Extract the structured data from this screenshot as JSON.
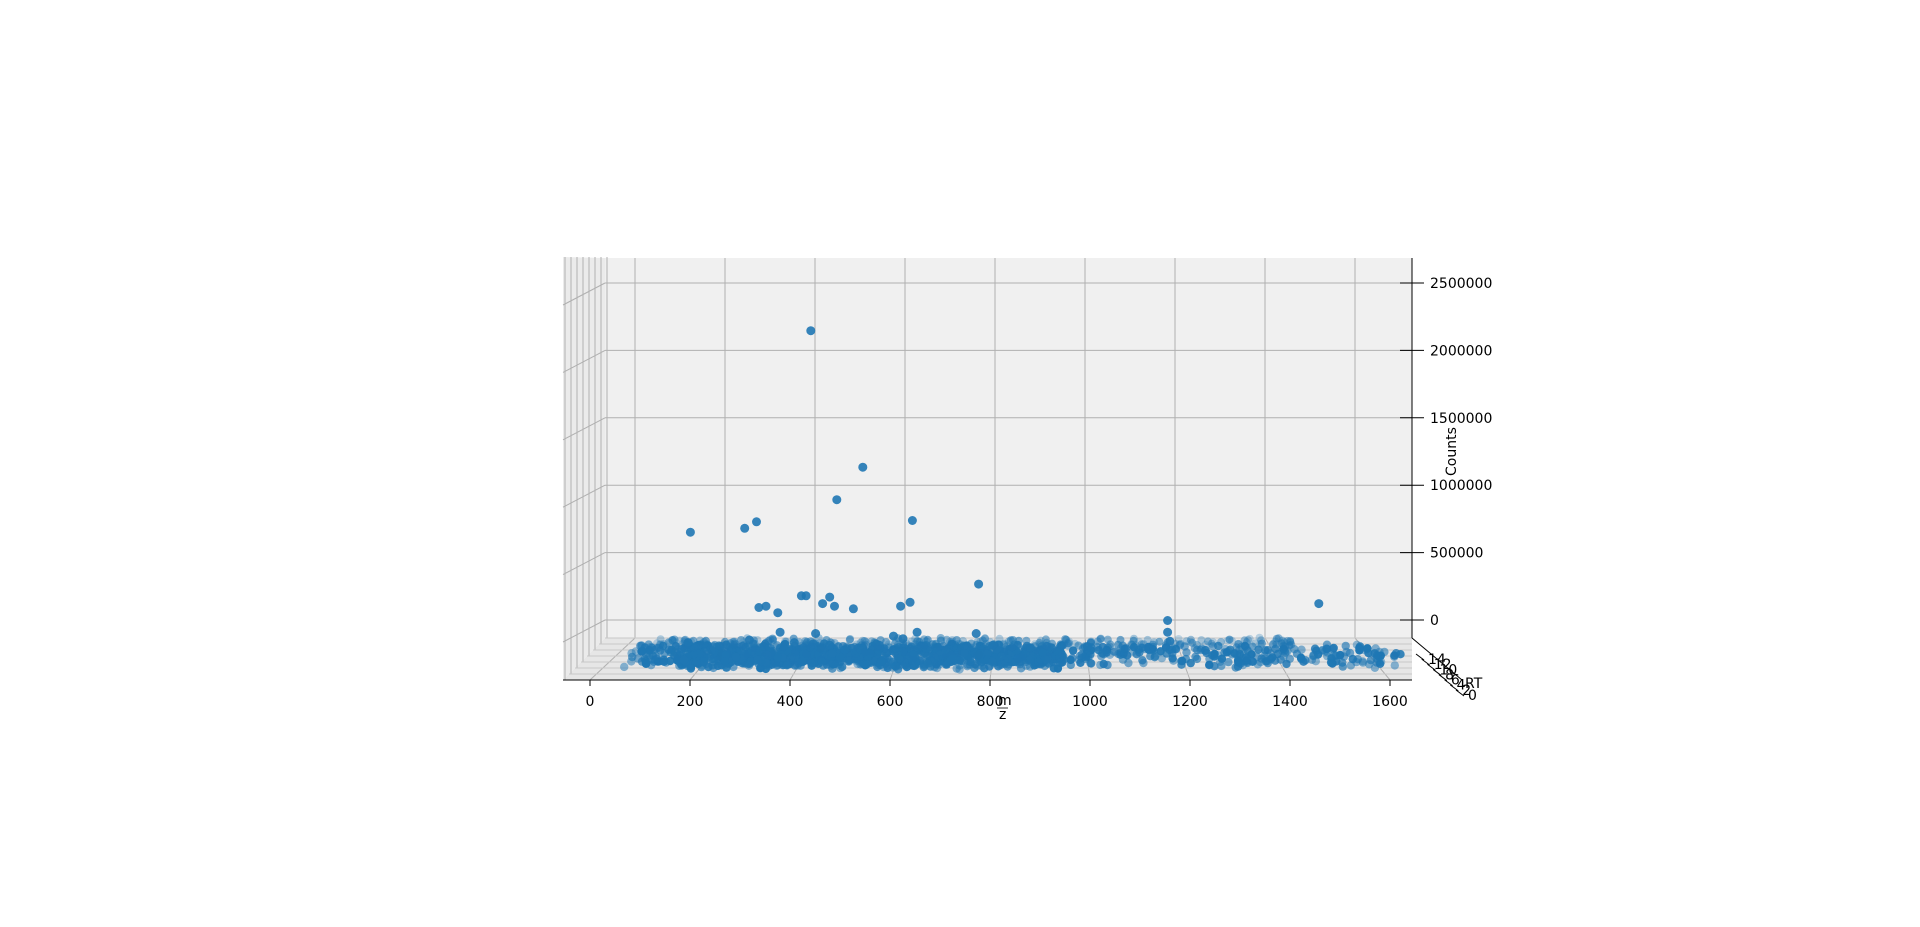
{
  "chart_data": {
    "type": "scatter",
    "view": "3d-projection",
    "xlabel": "m/z",
    "xlabel_numerator": "m",
    "xlabel_denominator": "z",
    "ylabel": "RT",
    "zlabel": "Counts",
    "x_ticks": [
      "0",
      "200",
      "400",
      "600",
      "800",
      "1000",
      "1200",
      "1400",
      "1600"
    ],
    "y_ticks": [
      "0",
      "2",
      "4",
      "6",
      "8",
      "10",
      "12",
      "14"
    ],
    "y_ticks_visible": [
      "14",
      "0"
    ],
    "z_ticks": [
      "0",
      "500000",
      "1000000",
      "1500000",
      "2000000",
      "2500000"
    ],
    "xlim": [
      -50,
      1700
    ],
    "zlim": [
      0,
      2700000
    ],
    "grid": true,
    "marker_color": "#1f77b4",
    "pane_color": "#f0f0f0",
    "grid_color": "#b0b0b0",
    "points": [
      [
        415,
        2510000
      ],
      [
        525,
        1460000
      ],
      [
        470,
        1210000
      ],
      [
        630,
        1050000
      ],
      [
        300,
        1040000
      ],
      [
        275,
        990000
      ],
      [
        160,
        960000
      ],
      [
        770,
        560000
      ],
      [
        1490,
        410000
      ],
      [
        395,
        470000
      ],
      [
        405,
        470000
      ],
      [
        455,
        460000
      ],
      [
        305,
        380000
      ],
      [
        320,
        390000
      ],
      [
        345,
        340000
      ],
      [
        440,
        410000
      ],
      [
        465,
        390000
      ],
      [
        505,
        370000
      ],
      [
        605,
        390000
      ],
      [
        625,
        420000
      ],
      [
        1170,
        280000
      ],
      [
        1170,
        190000
      ],
      [
        350,
        190000
      ],
      [
        425,
        180000
      ],
      [
        590,
        160000
      ],
      [
        610,
        140000
      ],
      [
        640,
        190000
      ],
      [
        765,
        180000
      ],
      [
        1175,
        120000
      ],
      [
        155,
        110000
      ],
      [
        285,
        130000
      ],
      [
        380,
        110000
      ],
      [
        420,
        100000
      ],
      [
        455,
        90000
      ],
      [
        560,
        90000
      ],
      [
        800,
        90000
      ],
      [
        880,
        70000
      ],
      [
        1000,
        80000
      ],
      [
        1130,
        60000
      ],
      [
        1250,
        50000
      ]
    ],
    "baseline_points": {
      "description": "dense band of low-count peaks across the full m/z range",
      "x_range": [
        40,
        1660
      ],
      "count_range": [
        0,
        60000
      ]
    }
  }
}
